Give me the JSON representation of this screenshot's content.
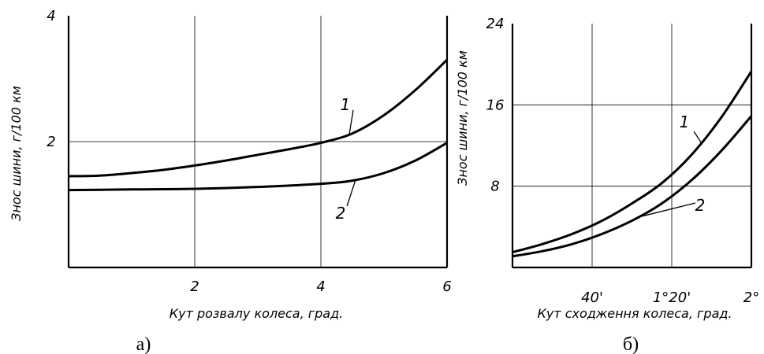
{
  "chart_data": [
    {
      "type": "line",
      "caption": "а)",
      "xlabel": "Кут розвалу колеса, град.",
      "ylabel": "Знос шини, г/100 км",
      "xlim": [
        0,
        6
      ],
      "ylim": [
        0,
        4
      ],
      "xticks": [
        "2",
        "4",
        "6"
      ],
      "yticks": [
        "2",
        "4"
      ],
      "grid": true,
      "series": [
        {
          "name": "1",
          "x": [
            0,
            0.5,
            1,
            1.5,
            2,
            2.5,
            3,
            3.5,
            4,
            4.5,
            5,
            5.5,
            6
          ],
          "y": [
            1.45,
            1.46,
            1.5,
            1.55,
            1.62,
            1.7,
            1.79,
            1.88,
            1.98,
            2.13,
            2.42,
            2.82,
            3.3
          ]
        },
        {
          "name": "2",
          "x": [
            0,
            1,
            2,
            3,
            4,
            4.5,
            5,
            5.5,
            6
          ],
          "y": [
            1.23,
            1.24,
            1.25,
            1.28,
            1.33,
            1.38,
            1.5,
            1.7,
            1.98
          ]
        }
      ]
    },
    {
      "type": "line",
      "caption": "б)",
      "xlabel": "Кут сходження колеса, град.",
      "ylabel": "Знос шини, г/100 км",
      "xlim": [
        0,
        2
      ],
      "ylim": [
        0,
        24
      ],
      "xticks": [
        "40'",
        "1°20'",
        "2°"
      ],
      "yticks": [
        "8",
        "16",
        "24"
      ],
      "grid": true,
      "series": [
        {
          "name": "1",
          "x": [
            0,
            0.25,
            0.5,
            0.75,
            1,
            1.25,
            1.5,
            1.75,
            2
          ],
          "y": [
            1.5,
            2.3,
            3.3,
            4.6,
            6.3,
            8.3,
            11.1,
            14.8,
            19.3
          ]
        },
        {
          "name": "2",
          "x": [
            0,
            0.25,
            0.5,
            0.75,
            1,
            1.25,
            1.5,
            1.75,
            2
          ],
          "y": [
            1.1,
            1.6,
            2.3,
            3.3,
            4.6,
            6.3,
            8.6,
            11.5,
            14.9
          ]
        }
      ]
    }
  ]
}
